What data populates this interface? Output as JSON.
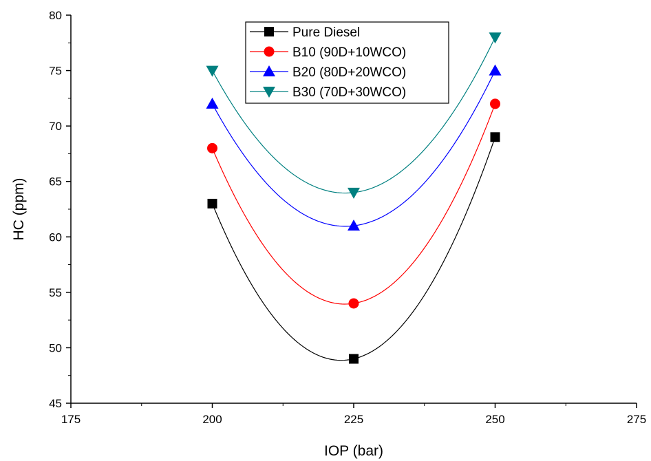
{
  "chart_data": {
    "type": "line",
    "xlabel": "IOP (bar)",
    "ylabel": "HC (ppm)",
    "xlim": [
      175,
      275
    ],
    "ylim": [
      45,
      80
    ],
    "xticks": [
      175,
      200,
      225,
      250,
      275
    ],
    "yticks": [
      45,
      50,
      55,
      60,
      65,
      70,
      75,
      80
    ],
    "x": [
      200,
      225,
      250
    ],
    "grid": false,
    "legend_position": "top-center",
    "series": [
      {
        "name": "Pure Diesel",
        "values": [
          63,
          49,
          69
        ],
        "color": "#000000",
        "marker": "square"
      },
      {
        "name": "B10 (90D+10WCO)",
        "values": [
          68,
          54,
          72
        ],
        "color": "#ff0000",
        "marker": "circle"
      },
      {
        "name": "B20 (80D+20WCO)",
        "values": [
          72,
          61,
          75
        ],
        "color": "#0000ff",
        "marker": "triangle-up"
      },
      {
        "name": "B30 (70D+30WCO)",
        "values": [
          75,
          64,
          78
        ],
        "color": "#008080",
        "marker": "triangle-down"
      }
    ]
  }
}
